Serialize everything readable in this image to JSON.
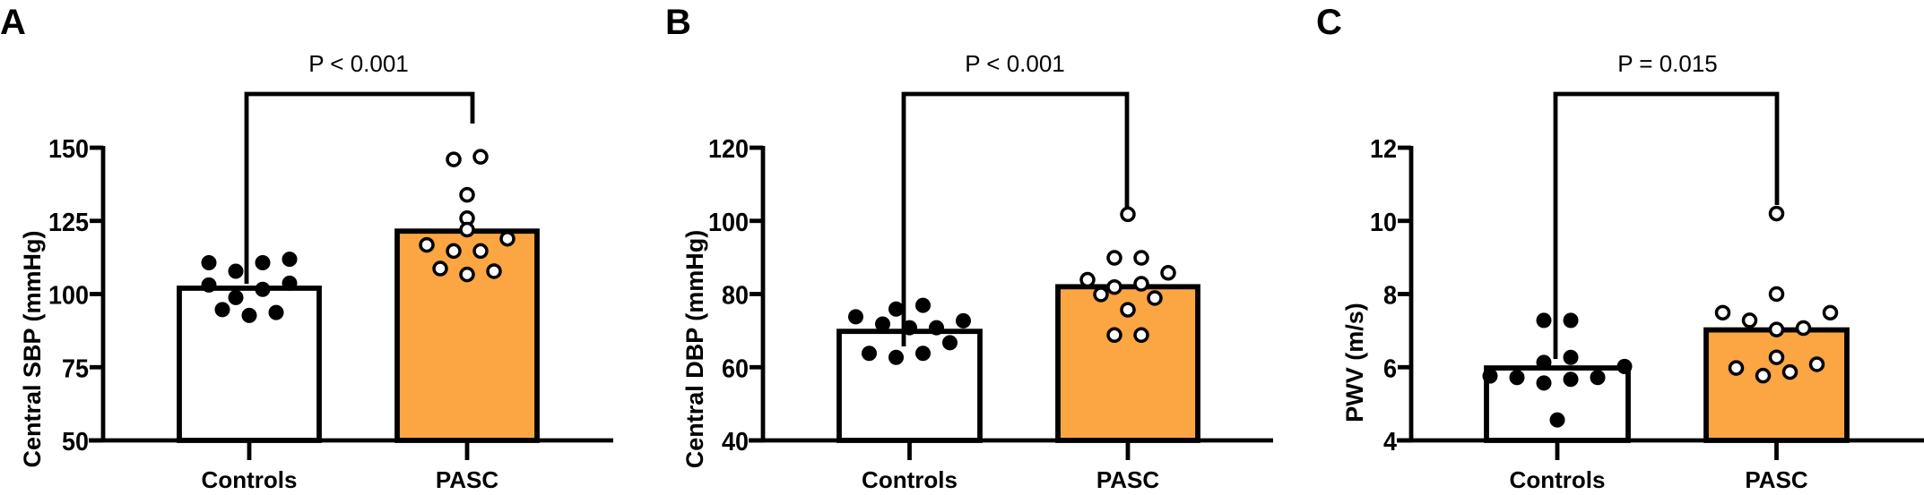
{
  "chart_data": [
    {
      "type": "bar",
      "panel_label": "A",
      "title": "",
      "xlabel": "",
      "ylabel": "Central SBP (mmHg)",
      "ylim": [
        50,
        150
      ],
      "yticks": [
        "50",
        "75",
        "100",
        "125",
        "150"
      ],
      "categories": [
        "Controls",
        "PASC"
      ],
      "values": [
        102,
        121.5
      ],
      "colors": [
        "#ffffff",
        "#fba543"
      ],
      "significance": "P < 0.001",
      "points": [
        [
          110.7,
          107.8,
          110.7,
          111.9,
          103.1,
          103.7,
          101.6,
          98.8,
          94.7,
          92.7,
          93.7
        ],
        [
          146.0,
          146.9,
          133.9,
          125.9,
          122.0,
          116.8,
          118.9,
          114.7,
          114.7,
          108.7,
          106.7,
          107.8
        ]
      ],
      "grid": false
    },
    {
      "type": "bar",
      "panel_label": "B",
      "title": "",
      "xlabel": "",
      "ylabel": "Central DBP (mmHg)",
      "ylim": [
        40,
        120
      ],
      "yticks": [
        "40",
        "60",
        "80",
        "100",
        "120"
      ],
      "categories": [
        "Controls",
        "PASC"
      ],
      "values": [
        69.8,
        82
      ],
      "colors": [
        "#ffffff",
        "#fba543"
      ],
      "significance": "P < 0.001",
      "points": [
        [
          73.8,
          75.9,
          76.9,
          72.7,
          71.8,
          70.8,
          70.8,
          66.7,
          63.8,
          62.7,
          63.8
        ],
        [
          101.8,
          89.9,
          89.9,
          85.8,
          83.9,
          81.9,
          82.8,
          79.9,
          78.9,
          75.7,
          68.8,
          68.8
        ]
      ],
      "grid": false
    },
    {
      "type": "bar",
      "panel_label": "C",
      "title": "",
      "xlabel": "",
      "ylabel": "PWV (m/s)",
      "ylim": [
        4,
        12
      ],
      "yticks": [
        "4",
        "6",
        "8",
        "10",
        "12"
      ],
      "categories": [
        "Controls",
        "PASC"
      ],
      "values": [
        5.98,
        7.02
      ],
      "colors": [
        "#ffffff",
        "#fba543"
      ],
      "significance": "P = 0.015",
      "points": [
        [
          7.28,
          7.28,
          6.27,
          6.13,
          6.02,
          5.76,
          5.72,
          5.57,
          5.67,
          5.72,
          4.56
        ],
        [
          10.2,
          8.0,
          7.49,
          7.49,
          7.28,
          7.03,
          7.07,
          6.27,
          5.98,
          6.08,
          5.87,
          5.77
        ]
      ],
      "grid": false
    }
  ]
}
